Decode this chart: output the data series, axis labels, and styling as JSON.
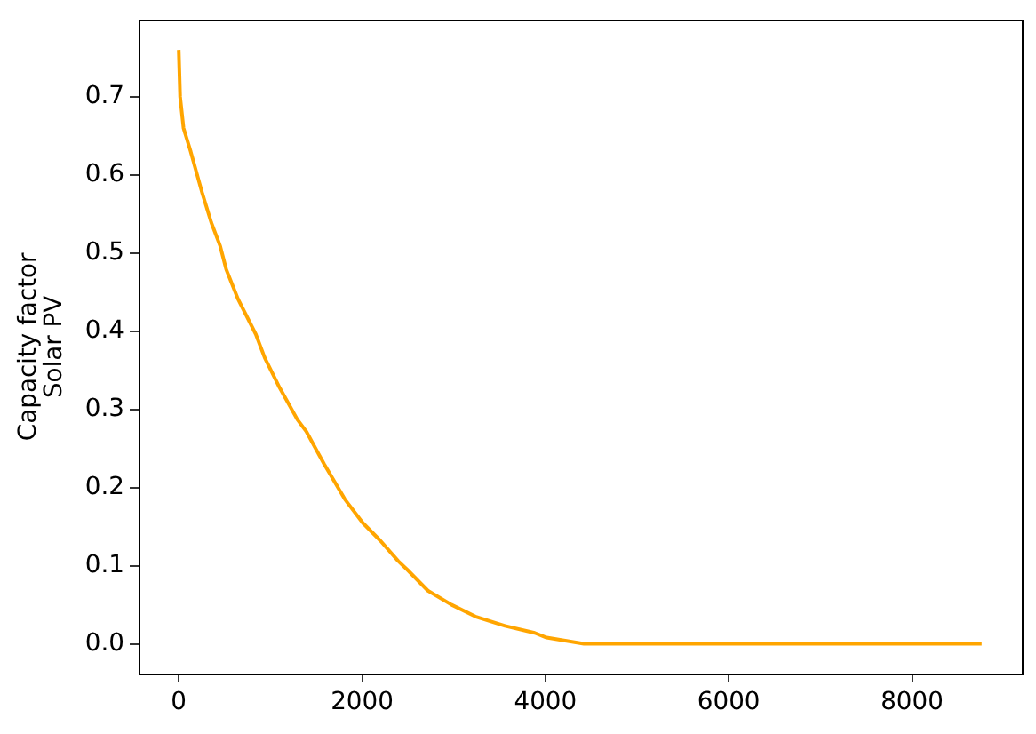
{
  "chart_data": {
    "type": "line",
    "ylabel": "Capacity factor\nSolar PV",
    "x": [
      0,
      15,
      52,
      130,
      258,
      355,
      452,
      518,
      647,
      841,
      938,
      1099,
      1294,
      1390,
      1586,
      1812,
      2006,
      2200,
      2394,
      2492,
      2718,
      2977,
      3236,
      3560,
      3883,
      4013,
      4420,
      8759
    ],
    "values": [
      0.76,
      0.7,
      0.66,
      0.63,
      0.576,
      0.539,
      0.509,
      0.479,
      0.441,
      0.396,
      0.366,
      0.328,
      0.287,
      0.272,
      0.23,
      0.185,
      0.155,
      0.132,
      0.106,
      0.095,
      0.068,
      0.05,
      0.035,
      0.023,
      0.014,
      0.008,
      0,
      0
    ],
    "color": "#ffa500",
    "marker": "none",
    "line_style": "solid",
    "legend": false,
    "grid": false,
    "xlim": [
      -438,
      9197
    ],
    "ylim": [
      -0.038,
      0.798
    ],
    "xticks": [
      0,
      2000,
      4000,
      6000,
      8000
    ],
    "yticks": [
      {
        "value": 0,
        "label": "0.0"
      },
      0.1,
      0.2,
      0.3,
      0.4,
      0.5,
      0.6,
      0.7
    ]
  }
}
